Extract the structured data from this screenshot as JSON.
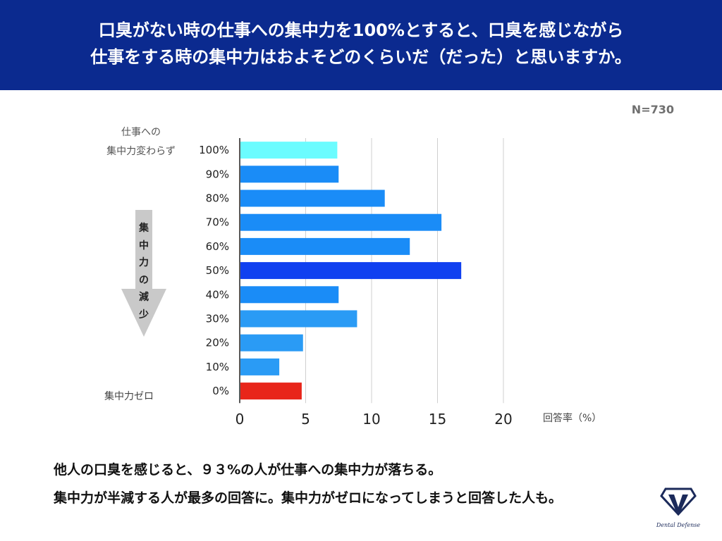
{
  "header": {
    "line1": "口臭がない時の仕事への集中力を100%とすると、口臭を感じながら",
    "line2": "仕事をする時の集中力はおよそどのくらいだ（だった）と思いますか。"
  },
  "sample_size": "N=730",
  "side_labels": {
    "top_line1": "仕事への",
    "top_line2": "集中力変わらず",
    "arrow_chars": [
      "集",
      "中",
      "力",
      "の",
      "減",
      "少"
    ],
    "bottom": "集中力ゼロ"
  },
  "chart_data": {
    "type": "bar",
    "orientation": "horizontal",
    "categories": [
      "100%",
      "90%",
      "80%",
      "70%",
      "60%",
      "50%",
      "40%",
      "30%",
      "20%",
      "10%",
      "0%"
    ],
    "values": [
      7.4,
      7.5,
      11.0,
      15.3,
      12.9,
      16.8,
      7.5,
      8.9,
      4.8,
      3.0,
      4.7
    ],
    "colors": [
      "#6bfcff",
      "#1a8cf7",
      "#1a8cf7",
      "#1a8cf7",
      "#1a8cf7",
      "#1040f0",
      "#1a8cf7",
      "#2a9bf5",
      "#2a9bf5",
      "#2a9bf5",
      "#e8251a"
    ],
    "xlim": [
      0,
      20
    ],
    "xticks": [
      0,
      5,
      10,
      15,
      20
    ],
    "xlabel": "回答率（%）",
    "grid": true
  },
  "footer": {
    "line1": "他人の口臭を感じると、９３%の人が仕事への集中力が落ちる。",
    "line2": "集中力が半減する人が最多の回答に。集中力がゼロになってしまうと回答した人も。"
  },
  "logo": {
    "text": "Dental Defense",
    "icon": "tooth-shield-icon"
  }
}
